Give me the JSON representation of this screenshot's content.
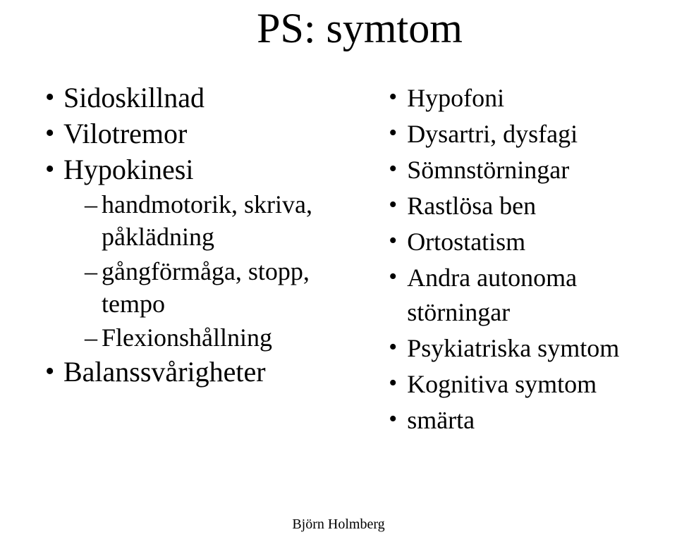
{
  "title": "PS: symtom",
  "left": {
    "items": [
      {
        "label": "Sidoskillnad"
      },
      {
        "label": "Vilotremor"
      },
      {
        "label": "Hypokinesi",
        "sub": [
          "handmotorik, skriva, påklädning",
          "gångförmåga, stopp, tempo",
          "Flexionshållning"
        ]
      },
      {
        "label": "Balanssvårigheter"
      }
    ]
  },
  "right": {
    "items": [
      "Hypofoni",
      "Dysartri, dysfagi",
      "Sömnstörningar",
      "Rastlösa ben",
      "Ortostatism",
      "Andra autonoma störningar",
      "Psykiatriska symtom",
      "Kognitiva symtom",
      "smärta"
    ]
  },
  "footer": "Björn Holmberg",
  "style": {
    "background_color": "#ffffff",
    "text_color": "#000000",
    "font_family": "Times New Roman",
    "title_fontsize": 60,
    "left_bullet_fontsize": 40,
    "left_sub_fontsize": 36,
    "right_bullet_fontsize": 36,
    "footer_fontsize": 20
  }
}
